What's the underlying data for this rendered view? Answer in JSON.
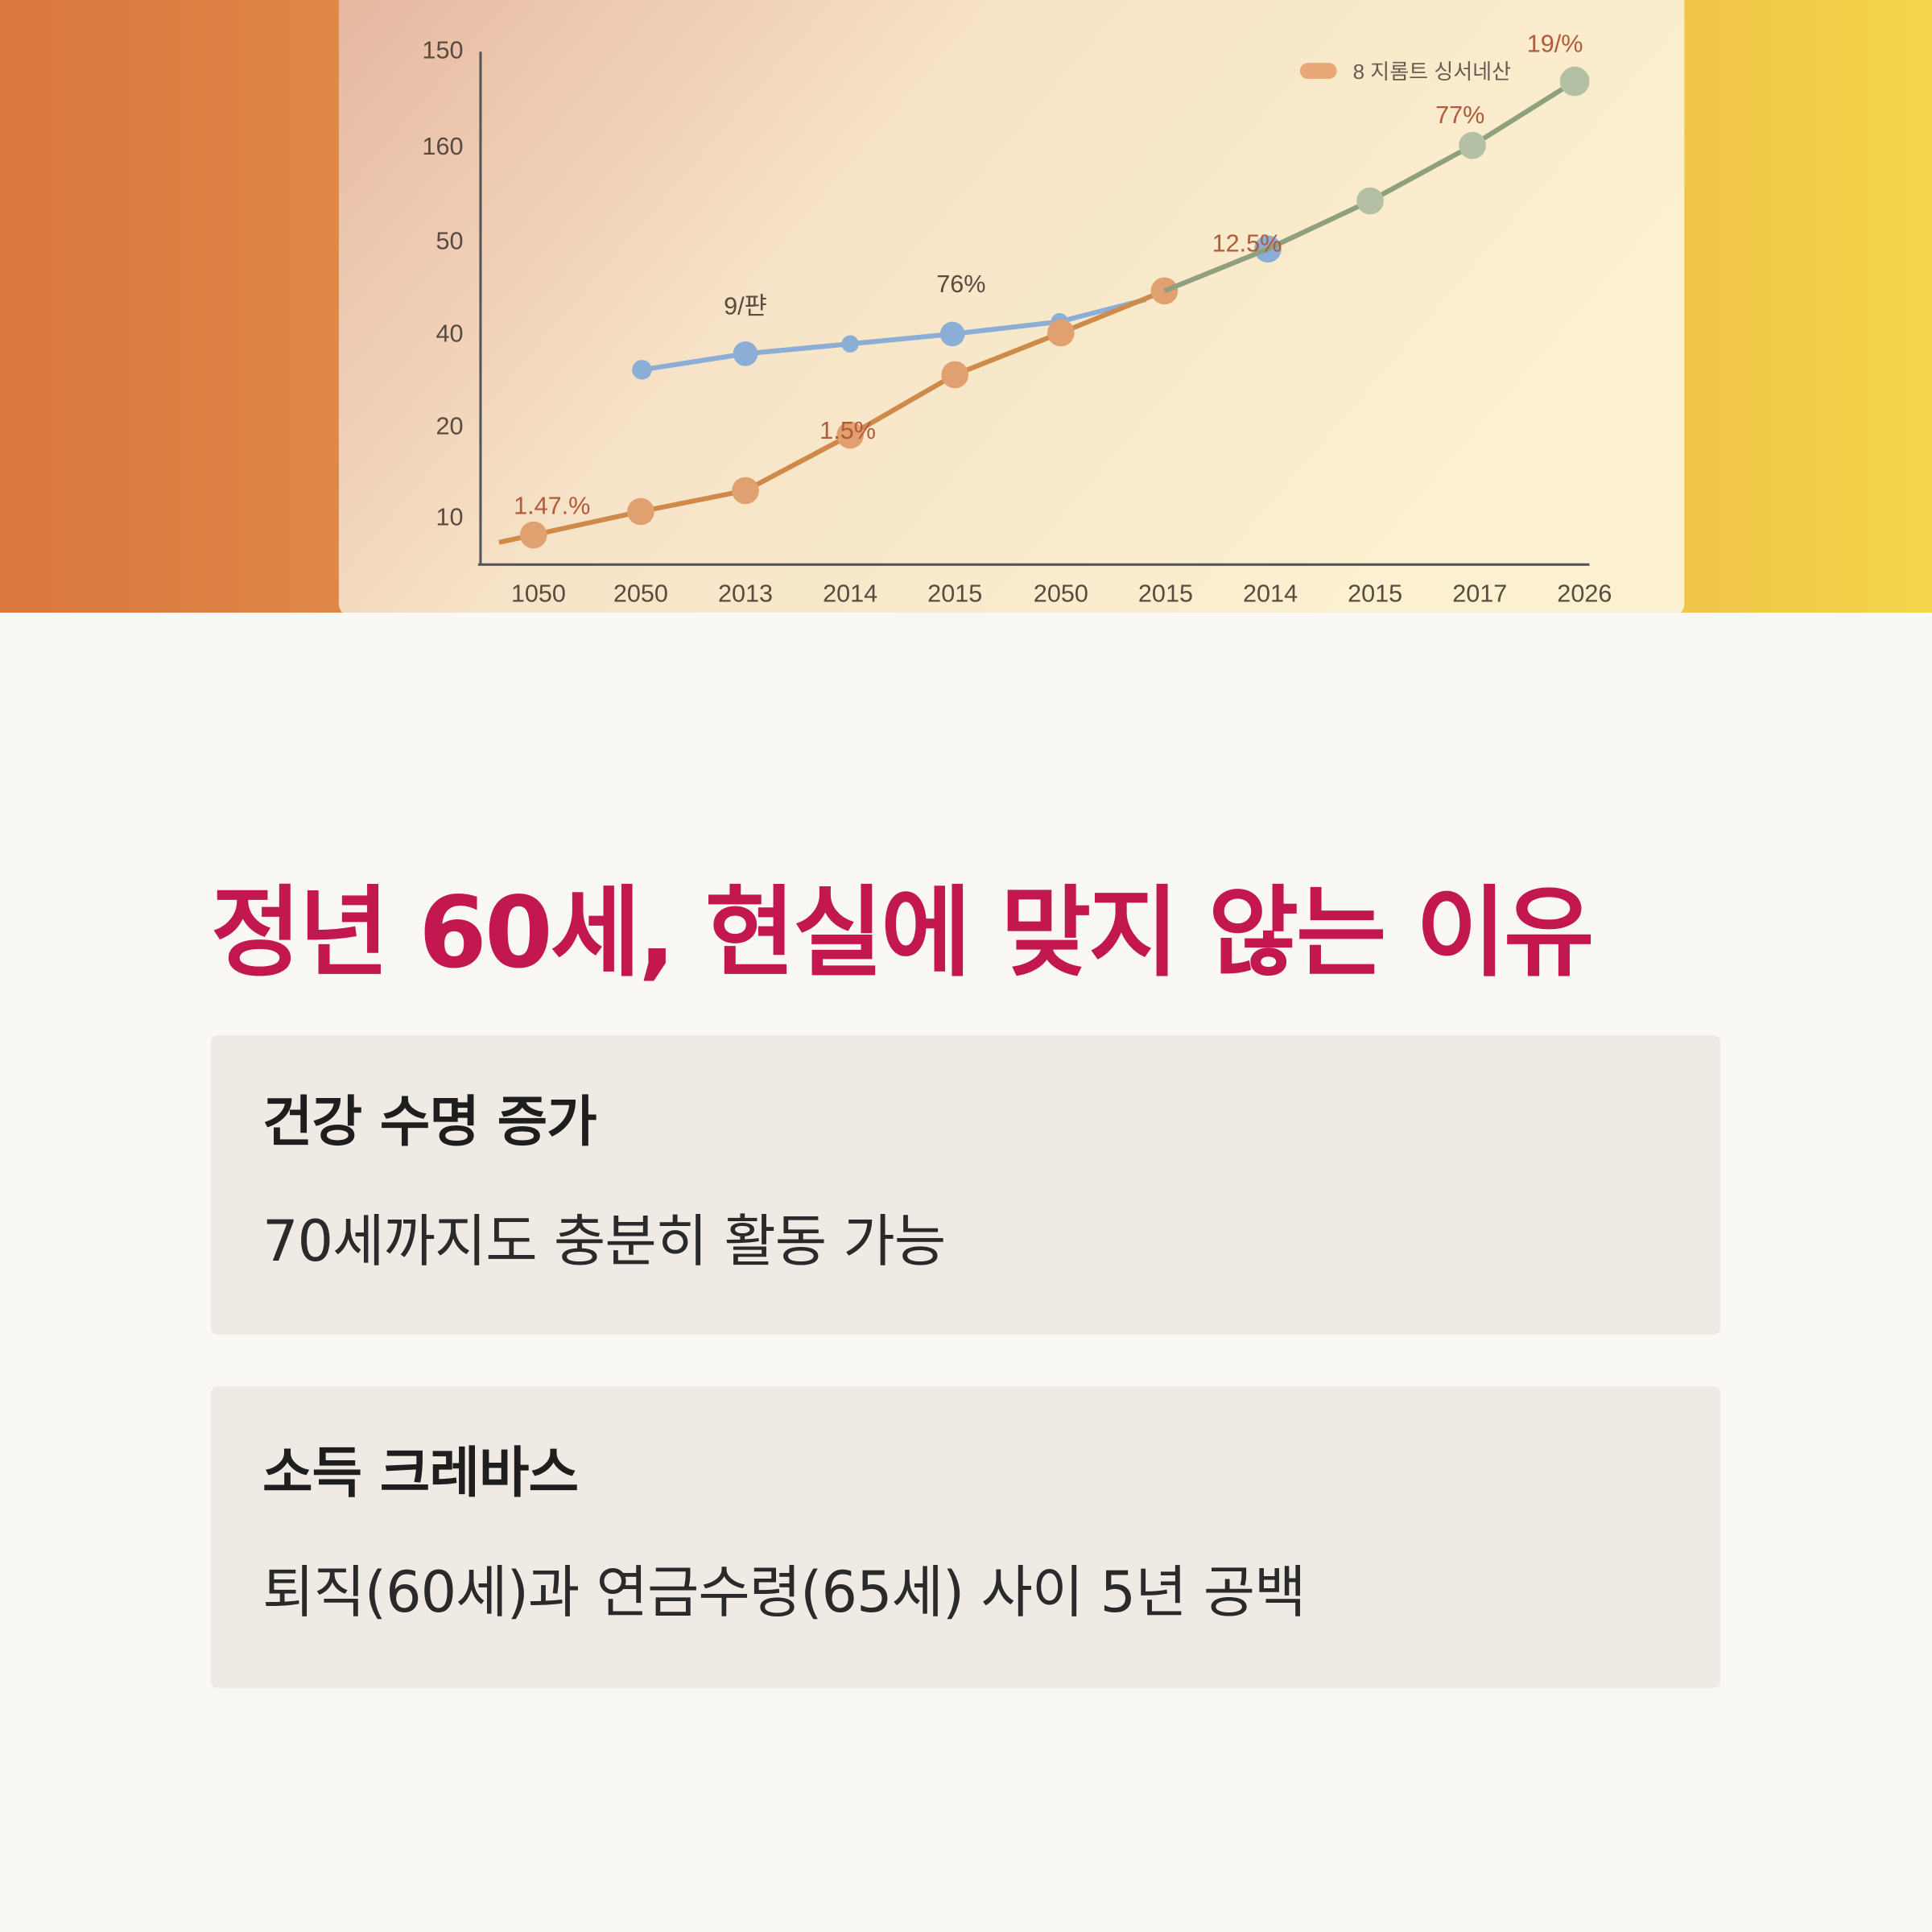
{
  "illustration": {
    "y_labels": [
      "150",
      "160",
      "50",
      "40",
      "20",
      "10"
    ],
    "x_labels": [
      "1050",
      "2050",
      "2013",
      "2014",
      "2015",
      "2050",
      "2015",
      "2014",
      "2015",
      "2017",
      "2026"
    ],
    "legend": "8 지롬트 싱서네산",
    "annotations": [
      "1.47.%",
      "9/퍈",
      "1.5%",
      "76%",
      "12.5%",
      "77%",
      "19/%"
    ]
  },
  "title": "정년 60세, 현실에 맞지 않는 이유",
  "cards": [
    {
      "heading": "건강 수명 증가",
      "body": "70세까지도 충분히 활동 가능"
    },
    {
      "heading": "소득 크레바스",
      "body": "퇴직(60세)과 연금수령(65세) 사이 5년 공백"
    }
  ]
}
